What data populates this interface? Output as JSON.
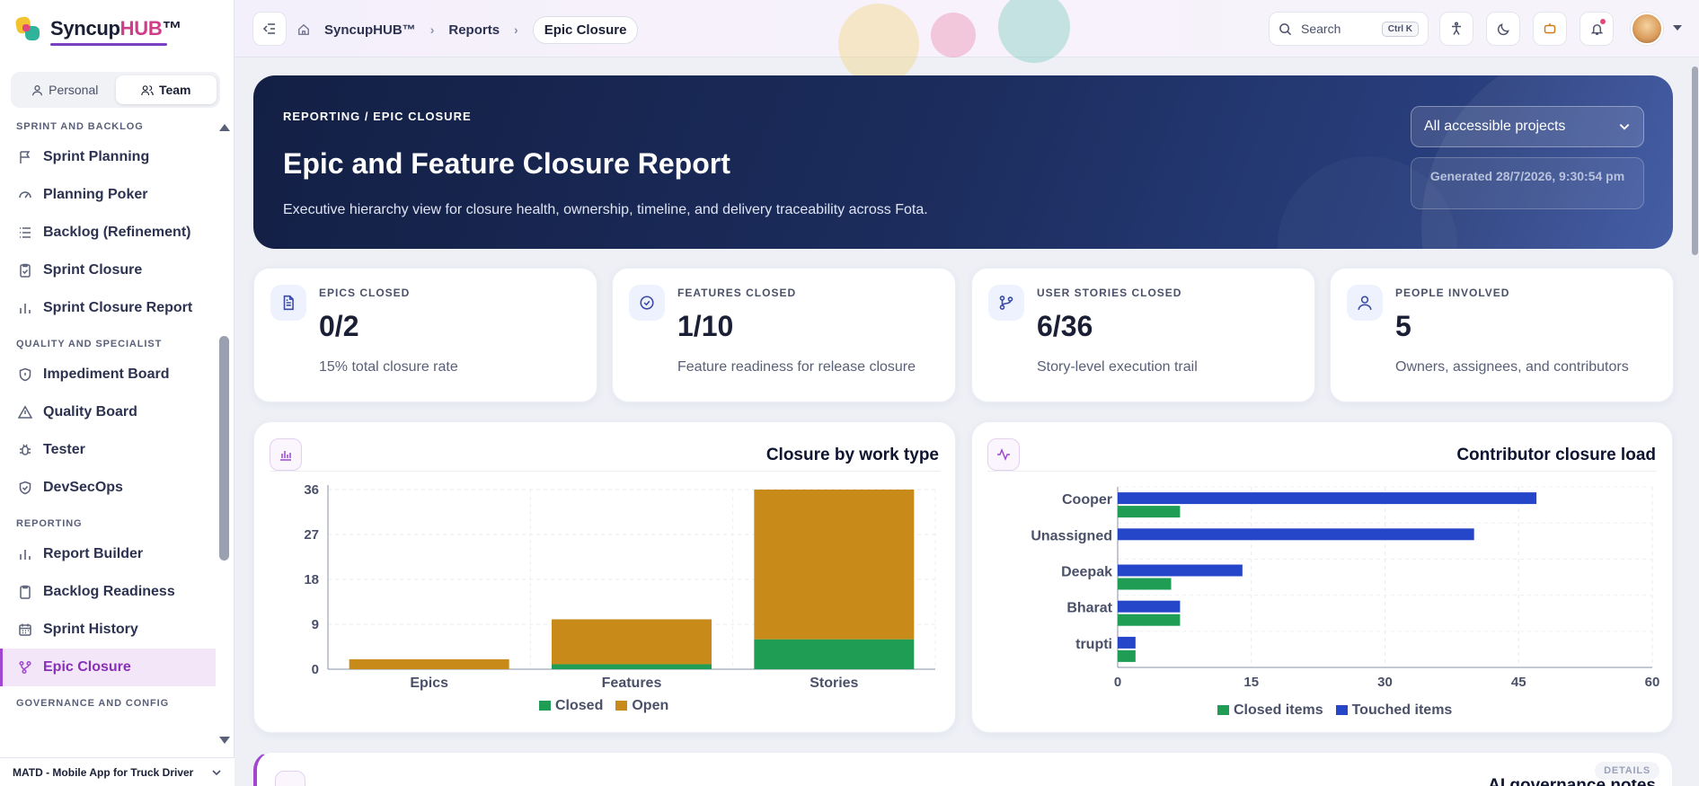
{
  "app": {
    "name_main": "Syncup",
    "name_accent": "HUB",
    "name_tm": "™"
  },
  "workspace_toggle": {
    "personal": "Personal",
    "team": "Team"
  },
  "sidebar": {
    "sections": [
      {
        "title": "SPRINT AND BACKLOG",
        "items": [
          {
            "label": "Sprint Planning",
            "icon": "flag-icon"
          },
          {
            "label": "Planning Poker",
            "icon": "gauge-icon"
          },
          {
            "label": "Backlog (Refinement)",
            "icon": "list-icon"
          },
          {
            "label": "Sprint Closure",
            "icon": "clipboard-check-icon"
          },
          {
            "label": "Sprint Closure Report",
            "icon": "bar-chart-icon"
          }
        ]
      },
      {
        "title": "QUALITY AND SPECIALIST",
        "items": [
          {
            "label": "Impediment Board",
            "icon": "shield-icon"
          },
          {
            "label": "Quality Board",
            "icon": "warning-icon"
          },
          {
            "label": "Tester",
            "icon": "bug-icon"
          },
          {
            "label": "DevSecOps",
            "icon": "shield-check-icon"
          }
        ]
      },
      {
        "title": "REPORTING",
        "items": [
          {
            "label": "Report Builder",
            "icon": "bar-chart-icon"
          },
          {
            "label": "Backlog Readiness",
            "icon": "clipboard-icon"
          },
          {
            "label": "Sprint History",
            "icon": "calendar-icon"
          },
          {
            "label": "Epic Closure",
            "icon": "git-branch-icon",
            "active": true
          }
        ]
      },
      {
        "title": "GOVERNANCE AND CONFIG",
        "items": []
      }
    ],
    "project": "MATD - Mobile App for Truck Driver"
  },
  "topbar": {
    "breadcrumb": [
      "SyncupHUB™",
      "Reports",
      "Epic Closure"
    ],
    "search_label": "Search",
    "search_shortcut": "Ctrl K"
  },
  "hero": {
    "eyebrow": "REPORTING / EPIC CLOSURE",
    "title": "Epic and Feature Closure Report",
    "subtitle": "Executive hierarchy view for closure health, ownership, timeline, and delivery traceability across Fota.",
    "project_filter": "All accessible projects",
    "generated": "Generated 28/7/2026, 9:30:54 pm"
  },
  "kpis": [
    {
      "label": "EPICS CLOSED",
      "value": "0/2",
      "sub": "15% total closure rate",
      "icon": "document-icon"
    },
    {
      "label": "FEATURES CLOSED",
      "value": "1/10",
      "sub": "Feature readiness for release closure",
      "icon": "check-circle-icon"
    },
    {
      "label": "USER STORIES CLOSED",
      "value": "6/36",
      "sub": "Story-level execution trail",
      "icon": "git-branch-icon"
    },
    {
      "label": "PEOPLE INVOLVED",
      "value": "5",
      "sub": "Owners, assignees, and contributors",
      "icon": "user-icon"
    }
  ],
  "charts": {
    "closure_title": "Closure by work type",
    "contributor_title": "Contributor closure load"
  },
  "chart_data": [
    {
      "type": "bar",
      "stacked": true,
      "title": "Closure by work type",
      "categories": [
        "Epics",
        "Features",
        "Stories"
      ],
      "series": [
        {
          "name": "Closed",
          "values": [
            0,
            1,
            6
          ],
          "color": "#1f9d55"
        },
        {
          "name": "Open",
          "values": [
            2,
            9,
            30
          ],
          "color": "#c88a18"
        }
      ],
      "ylim": [
        0,
        36
      ],
      "yticks": [
        0,
        9,
        18,
        27,
        36
      ],
      "grid": true,
      "legend": "bottom"
    },
    {
      "type": "bar",
      "orientation": "horizontal",
      "title": "Contributor closure load",
      "categories": [
        "Cooper",
        "Unassigned",
        "Deepak",
        "Bharat",
        "trupti"
      ],
      "series": [
        {
          "name": "Touched items",
          "values": [
            47,
            40,
            14,
            7,
            2
          ],
          "color": "#2546c8"
        },
        {
          "name": "Closed items",
          "values": [
            7,
            0,
            6,
            7,
            2
          ],
          "color": "#1f9d55"
        }
      ],
      "xlim": [
        0,
        60
      ],
      "xticks": [
        0,
        15,
        30,
        45,
        60
      ],
      "grid": true,
      "legend": "bottom",
      "legend_order": [
        "Closed items",
        "Touched items"
      ]
    }
  ],
  "bottom_card": {
    "title": "AI governance notes",
    "badge": "DETAILS"
  },
  "colors": {
    "accent": "#a046d0",
    "hero_start": "#131f44",
    "hero_end": "#3a54a0",
    "closed": "#1f9d55",
    "open": "#c88a18",
    "touched": "#2546c8"
  }
}
